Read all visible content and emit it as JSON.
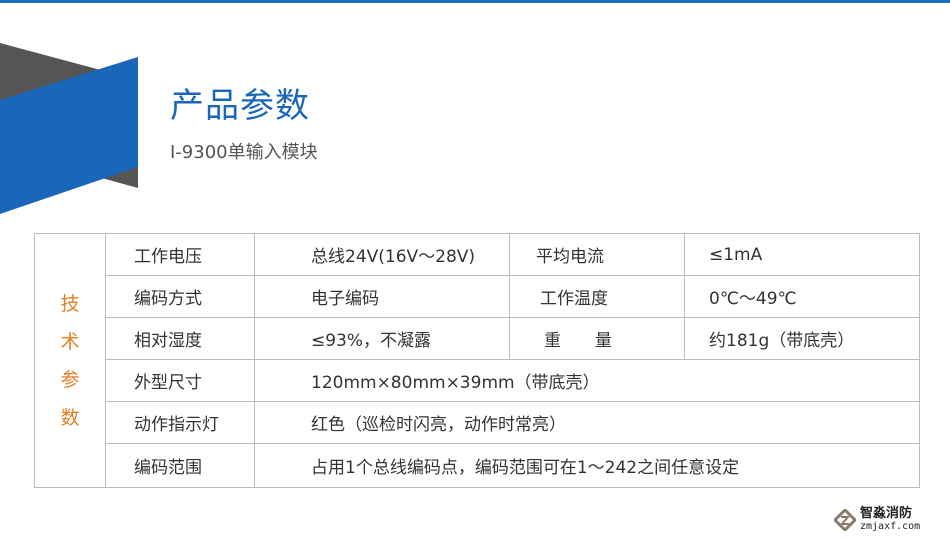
{
  "header": {
    "title": "产品参数",
    "subtitle": "I-9300单输入模块"
  },
  "colors": {
    "accent": "#1a66b8",
    "side_label": "#e67e22",
    "grey_shape": "#555555"
  },
  "table": {
    "side_label": [
      "技",
      "术",
      "参",
      "数"
    ],
    "rows": [
      {
        "k": "工作电压",
        "v": "总线24V(16V～28V)",
        "k2": "平均电流",
        "v2": "≤1mA"
      },
      {
        "k": "编码方式",
        "v": "电子编码",
        "k2": "工作温度",
        "v2": "0℃～49℃"
      },
      {
        "k": "相对湿度",
        "v": "≤93%，不凝露",
        "k2": "重　　量",
        "v2": "约181g（带底壳）"
      },
      {
        "k": "外型尺寸",
        "v": "120mm×80mm×39mm（带底壳）"
      },
      {
        "k": "动作指示灯",
        "v": "红色（巡检时闪亮，动作时常亮）"
      },
      {
        "k": "编码范围",
        "v": "占用1个总线编码点，编码范围可在1～242之间任意设定"
      }
    ]
  },
  "logo": {
    "name": "智淼消防",
    "url_text": "zmjaxf.com"
  }
}
